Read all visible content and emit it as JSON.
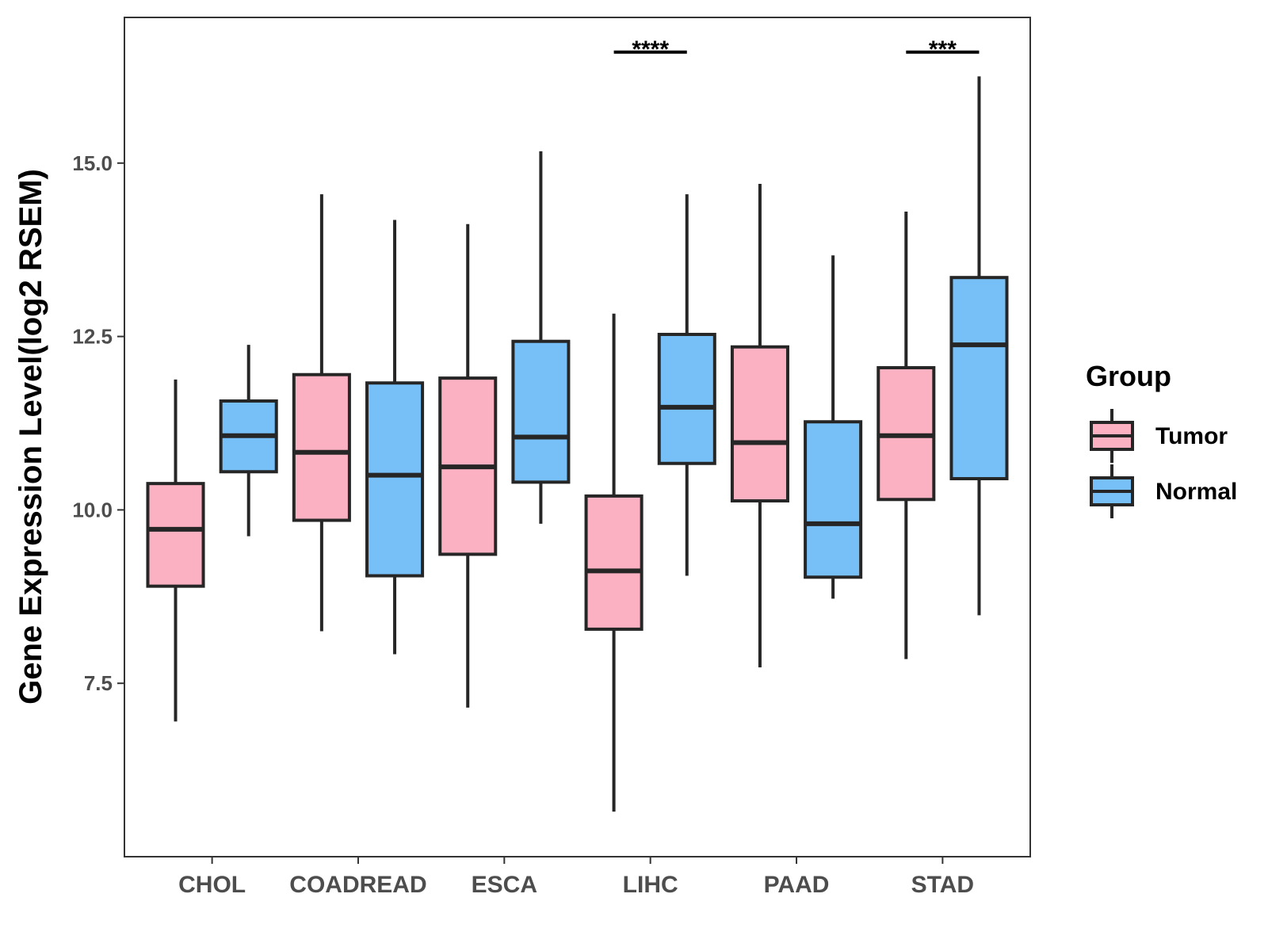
{
  "chart_data": {
    "type": "boxplot",
    "ylabel": "Gene Expression Level(log2 RSEM)",
    "xlabel": "",
    "ylim": [
      5.0,
      17.1
    ],
    "yticks": [
      7.5,
      10.0,
      12.5,
      15.0
    ],
    "ytick_labels": [
      "7.5",
      "10.0",
      "12.5",
      "15.0"
    ],
    "categories": [
      "CHOL",
      "COADREAD",
      "ESCA",
      "LIHC",
      "PAAD",
      "STAD"
    ],
    "legend": {
      "title": "Group",
      "position": "right"
    },
    "series": [
      {
        "name": "Tumor",
        "color": "#FBB1C1",
        "boxes": [
          {
            "category": "CHOL",
            "whisker_low": 6.95,
            "q1": 8.9,
            "median": 9.72,
            "q3": 10.38,
            "whisker_high": 11.88
          },
          {
            "category": "COADREAD",
            "whisker_low": 8.25,
            "q1": 9.85,
            "median": 10.83,
            "q3": 11.95,
            "whisker_high": 14.55
          },
          {
            "category": "ESCA",
            "whisker_low": 7.15,
            "q1": 9.36,
            "median": 10.62,
            "q3": 11.9,
            "whisker_high": 14.12
          },
          {
            "category": "LIHC",
            "whisker_low": 5.65,
            "q1": 8.28,
            "median": 9.12,
            "q3": 10.2,
            "whisker_high": 12.83
          },
          {
            "category": "PAAD",
            "whisker_low": 7.73,
            "q1": 10.13,
            "median": 10.97,
            "q3": 12.35,
            "whisker_high": 14.7
          },
          {
            "category": "STAD",
            "whisker_low": 7.85,
            "q1": 10.15,
            "median": 11.07,
            "q3": 12.05,
            "whisker_high": 14.3
          }
        ]
      },
      {
        "name": "Normal",
        "color": "#76C0F7",
        "boxes": [
          {
            "category": "CHOL",
            "whisker_low": 9.62,
            "q1": 10.55,
            "median": 11.07,
            "q3": 11.57,
            "whisker_high": 12.38
          },
          {
            "category": "COADREAD",
            "whisker_low": 7.92,
            "q1": 9.05,
            "median": 10.5,
            "q3": 11.83,
            "whisker_high": 14.18
          },
          {
            "category": "ESCA",
            "whisker_low": 9.8,
            "q1": 10.4,
            "median": 11.05,
            "q3": 12.43,
            "whisker_high": 15.17
          },
          {
            "category": "LIHC",
            "whisker_low": 9.05,
            "q1": 10.67,
            "median": 11.48,
            "q3": 12.53,
            "whisker_high": 14.55
          },
          {
            "category": "PAAD",
            "whisker_low": 8.72,
            "q1": 9.03,
            "median": 9.8,
            "q3": 11.27,
            "whisker_high": 13.67
          },
          {
            "category": "STAD",
            "whisker_low": 8.48,
            "q1": 10.45,
            "median": 12.38,
            "q3": 13.35,
            "whisker_high": 16.25
          }
        ]
      }
    ],
    "significance": [
      {
        "category": "LIHC",
        "label": "****",
        "y": 16.6
      },
      {
        "category": "STAD",
        "label": "***",
        "y": 16.6
      }
    ]
  }
}
